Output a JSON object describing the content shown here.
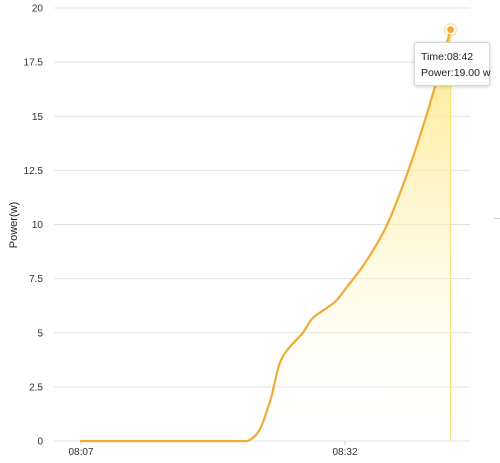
{
  "chart_data": {
    "type": "area",
    "ylabel": "Power(w)",
    "xlabel": "",
    "x_ticks": [
      "08:07",
      "08:32"
    ],
    "y_ticks": [
      "0",
      "2.5",
      "5",
      "7.5",
      "10",
      "12.5",
      "15",
      "17.5",
      "20"
    ],
    "ylim": [
      0,
      20
    ],
    "grid": true,
    "series": [
      {
        "time": [
          "08:07",
          "08:10",
          "08:13",
          "08:16",
          "08:18",
          "08:21",
          "08:22",
          "08:23",
          "08:24",
          "08:25",
          "08:26",
          "08:28",
          "08:29",
          "08:31",
          "08:32",
          "08:34",
          "08:36",
          "08:38",
          "08:40",
          "08:42"
        ],
        "values": [
          0,
          0,
          0,
          0,
          0,
          0,
          0,
          0.05,
          0.6,
          2.0,
          3.8,
          5.0,
          5.7,
          6.4,
          7.0,
          8.3,
          10.0,
          12.5,
          15.5,
          19.0
        ]
      }
    ],
    "line_color": "#f0ab35",
    "fill_color": "#ffe77a",
    "cursor_color": "#f5e27a"
  },
  "tooltip": {
    "time_label": "Time:",
    "time_value": "08:42",
    "power_label": "Power:",
    "power_value": "19.00 w"
  }
}
